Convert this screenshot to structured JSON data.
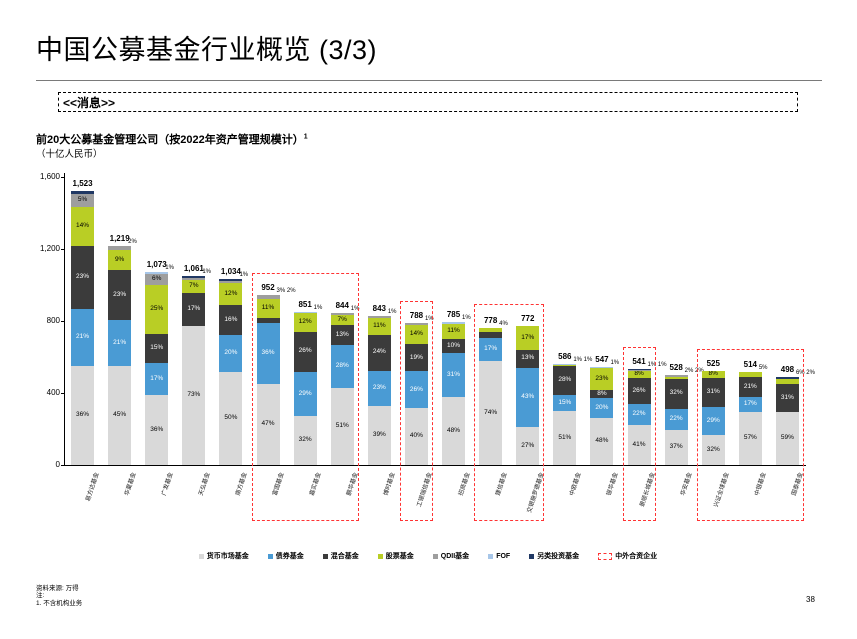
{
  "slide": {
    "title": "中国公募基金行业概览 (3/3)",
    "message_box": "<<消息>>",
    "page_number": "38",
    "footer": {
      "source": "资料来源: 万得",
      "note_label": "注:",
      "note1": "1.    不含机构业务"
    }
  },
  "chart_heading": {
    "title": "前20大公募基金管理公司（按2022年资产管理规模计）",
    "title_superscript": "1",
    "subtitle": "（十亿人民币）"
  },
  "chart_data": {
    "type": "bar",
    "stacked": true,
    "unit": "十亿人民币",
    "ylim": [
      0,
      1600
    ],
    "yticks": [
      {
        "v": 0,
        "label": "0"
      },
      {
        "v": 400,
        "label": "400"
      },
      {
        "v": 800,
        "label": "800"
      },
      {
        "v": 1200,
        "label": "1,200"
      },
      {
        "v": 1600,
        "label": "1,600"
      }
    ],
    "series": [
      {
        "name": "货币市场基金",
        "color": "#d9d9d9",
        "text": "#000000"
      },
      {
        "name": "债券基金",
        "color": "#4a9bd4",
        "text": "#ffffff"
      },
      {
        "name": "混合基金",
        "color": "#3b3b3b",
        "text": "#ffffff"
      },
      {
        "name": "股票基金",
        "color": "#b9ce25",
        "text": "#000000"
      },
      {
        "name": "QDII基金",
        "color": "#9e9e9e",
        "text": "#000000"
      },
      {
        "name": "FOF",
        "color": "#a7c6e8",
        "text": "#000000"
      },
      {
        "name": "另类投资基金",
        "color": "#203864",
        "text": "#ffffff"
      }
    ],
    "legend_jv": {
      "label": "中外合资企业",
      "color": "#ff3333"
    },
    "bars": [
      {
        "company": "易方达基金",
        "total": 1523,
        "label": "1,523",
        "segs": [
          {
            "s": 0,
            "p": 36,
            "l": "36%"
          },
          {
            "s": 1,
            "p": 21,
            "l": "21%"
          },
          {
            "s": 2,
            "p": 23,
            "l": "23%"
          },
          {
            "s": 3,
            "p": 14,
            "l": "14%"
          },
          {
            "s": 4,
            "p": 5,
            "l": "5%"
          },
          {
            "s": 6,
            "p": 1
          }
        ]
      },
      {
        "company": "华夏基金",
        "total": 1219,
        "label": "1,219",
        "segs": [
          {
            "s": 0,
            "p": 45,
            "l": "45%"
          },
          {
            "s": 1,
            "p": 21,
            "l": "21%"
          },
          {
            "s": 2,
            "p": 23,
            "l": "23%"
          },
          {
            "s": 3,
            "p": 9,
            "l": "9%"
          },
          {
            "s": 4,
            "p": 2,
            "l": "2%",
            "o": true
          }
        ]
      },
      {
        "company": "广发基金",
        "total": 1073,
        "label": "1,073",
        "segs": [
          {
            "s": 0,
            "p": 36,
            "l": "36%"
          },
          {
            "s": 1,
            "p": 17,
            "l": "17%"
          },
          {
            "s": 2,
            "p": 15,
            "l": "15%"
          },
          {
            "s": 3,
            "p": 25,
            "l": "25%"
          },
          {
            "s": 4,
            "p": 6,
            "l": "6%"
          },
          {
            "s": 5,
            "p": 1,
            "l": "1%",
            "o": true
          }
        ]
      },
      {
        "company": "天弘基金",
        "total": 1061,
        "label": "1,061",
        "segs": [
          {
            "s": 0,
            "p": 73,
            "l": "73%"
          },
          {
            "s": 2,
            "p": 17,
            "l": "17%"
          },
          {
            "s": 3,
            "p": 7,
            "l": "7%"
          },
          {
            "s": 4,
            "p": 1,
            "l": "1%",
            "o": true
          },
          {
            "s": 6,
            "p": 1
          }
        ]
      },
      {
        "company": "南方基金",
        "total": 1034,
        "label": "1,034",
        "segs": [
          {
            "s": 0,
            "p": 50,
            "l": "50%"
          },
          {
            "s": 1,
            "p": 20,
            "l": "20%"
          },
          {
            "s": 2,
            "p": 16,
            "l": "16%"
          },
          {
            "s": 3,
            "p": 12,
            "l": "12%"
          },
          {
            "s": 4,
            "p": 1,
            "l": "1%",
            "o": true
          },
          {
            "s": 6,
            "p": 1
          }
        ]
      },
      {
        "company": "富国基金",
        "total": 952,
        "label": "952",
        "segs": [
          {
            "s": 0,
            "p": 47,
            "l": "47%"
          },
          {
            "s": 1,
            "p": 36,
            "l": "36%"
          },
          {
            "s": 2,
            "p": 3,
            "l": "3%",
            "o": true
          },
          {
            "s": 3,
            "p": 11,
            "l": "11%"
          },
          {
            "s": 4,
            "p": 2,
            "l": "2%",
            "o": true
          }
        ]
      },
      {
        "company": "嘉实基金",
        "total": 851,
        "label": "851",
        "segs": [
          {
            "s": 0,
            "p": 32,
            "l": "32%"
          },
          {
            "s": 1,
            "p": 29,
            "l": "29%"
          },
          {
            "s": 2,
            "p": 26,
            "l": "26%"
          },
          {
            "s": 3,
            "p": 12,
            "l": "12%"
          },
          {
            "s": 5,
            "p": 1,
            "l": "1%",
            "o": true
          }
        ]
      },
      {
        "company": "鹏华基金",
        "total": 844,
        "label": "844",
        "segs": [
          {
            "s": 0,
            "p": 51,
            "l": "51%"
          },
          {
            "s": 1,
            "p": 28,
            "l": "28%"
          },
          {
            "s": 2,
            "p": 13,
            "l": "13%"
          },
          {
            "s": 3,
            "p": 7,
            "l": "7%"
          },
          {
            "s": 4,
            "p": 1,
            "l": "1%",
            "o": true
          }
        ]
      },
      {
        "company": "博时基金",
        "total": 843,
        "label": "843",
        "segs": [
          {
            "s": 0,
            "p": 39,
            "l": "39%"
          },
          {
            "s": 1,
            "p": 23,
            "l": "23%"
          },
          {
            "s": 2,
            "p": 24,
            "l": "24%"
          },
          {
            "s": 3,
            "p": 11,
            "l": "11%"
          },
          {
            "s": 4,
            "p": 1,
            "l": "1%",
            "o": true
          }
        ]
      },
      {
        "company": "工银瑞信基金",
        "total": 788,
        "label": "788",
        "segs": [
          {
            "s": 0,
            "p": 40,
            "l": "40%"
          },
          {
            "s": 1,
            "p": 26,
            "l": "26%"
          },
          {
            "s": 2,
            "p": 19,
            "l": "19%"
          },
          {
            "s": 3,
            "p": 14,
            "l": "14%"
          },
          {
            "s": 4,
            "p": 1,
            "l": "1%",
            "o": true
          }
        ]
      },
      {
        "company": "招商基金",
        "total": 785,
        "label": "785",
        "segs": [
          {
            "s": 0,
            "p": 48,
            "l": "48%"
          },
          {
            "s": 1,
            "p": 31,
            "l": "31%"
          },
          {
            "s": 2,
            "p": 10,
            "l": "10%"
          },
          {
            "s": 3,
            "p": 11,
            "l": "11%"
          },
          {
            "s": 5,
            "p": 1,
            "l": "1%",
            "o": true
          }
        ]
      },
      {
        "company": "建信基金",
        "total": 778,
        "label": "778",
        "segs": [
          {
            "s": 0,
            "p": 74,
            "l": "74%"
          },
          {
            "s": 1,
            "p": 17,
            "l": "17%"
          },
          {
            "s": 2,
            "p": 4,
            "l": "4%",
            "o": true
          },
          {
            "s": 3,
            "p": 3
          }
        ]
      },
      {
        "company": "交银施罗德基金",
        "total": 772,
        "label": "772",
        "segs": [
          {
            "s": 0,
            "p": 27,
            "l": "27%"
          },
          {
            "s": 1,
            "p": 43,
            "l": "43%"
          },
          {
            "s": 2,
            "p": 13,
            "l": "13%"
          },
          {
            "s": 3,
            "p": 17,
            "l": "17%"
          }
        ]
      },
      {
        "company": "中欧基金",
        "total": 586,
        "label": "586",
        "segs": [
          {
            "s": 0,
            "p": 51,
            "l": "51%"
          },
          {
            "s": 1,
            "p": 15,
            "l": "15%"
          },
          {
            "s": 2,
            "p": 28,
            "l": "28%"
          },
          {
            "s": 3,
            "p": 1,
            "l": "1%",
            "o": true
          },
          {
            "s": 5,
            "p": 1,
            "l": "1%",
            "o": true
          }
        ]
      },
      {
        "company": "银华基金",
        "total": 547,
        "label": "547",
        "segs": [
          {
            "s": 0,
            "p": 48,
            "l": "48%"
          },
          {
            "s": 1,
            "p": 20,
            "l": "20%"
          },
          {
            "s": 2,
            "p": 8,
            "l": "8%"
          },
          {
            "s": 3,
            "p": 23,
            "l": "23%"
          },
          {
            "s": 5,
            "p": 1,
            "l": "1%",
            "o": true
          }
        ]
      },
      {
        "company": "景顺长城基金",
        "total": 541,
        "label": "541",
        "segs": [
          {
            "s": 0,
            "p": 41,
            "l": "41%"
          },
          {
            "s": 1,
            "p": 22,
            "l": "22%"
          },
          {
            "s": 2,
            "p": 26,
            "l": "26%"
          },
          {
            "s": 3,
            "p": 8,
            "l": "8%"
          },
          {
            "s": 4,
            "p": 1,
            "l": "1%",
            "o": true
          },
          {
            "s": 6,
            "p": 1,
            "l": "1%",
            "o": true
          }
        ]
      },
      {
        "company": "华安基金",
        "total": 528,
        "label": "528",
        "segs": [
          {
            "s": 0,
            "p": 37,
            "l": "37%"
          },
          {
            "s": 1,
            "p": 22,
            "l": "22%"
          },
          {
            "s": 2,
            "p": 32,
            "l": "32%"
          },
          {
            "s": 3,
            "p": 2,
            "l": "2%",
            "o": true
          },
          {
            "s": 4,
            "p": 2,
            "l": "2%",
            "o": true
          }
        ]
      },
      {
        "company": "兴证全球基金",
        "total": 525,
        "label": "525",
        "segs": [
          {
            "s": 0,
            "p": 32,
            "l": "32%"
          },
          {
            "s": 1,
            "p": 29,
            "l": "29%"
          },
          {
            "s": 2,
            "p": 31,
            "l": "31%"
          },
          {
            "s": 3,
            "p": 8,
            "l": "8%"
          }
        ]
      },
      {
        "company": "中银基金",
        "total": 514,
        "label": "514",
        "segs": [
          {
            "s": 0,
            "p": 57,
            "l": "57%"
          },
          {
            "s": 1,
            "p": 17,
            "l": "17%"
          },
          {
            "s": 2,
            "p": 21,
            "l": "21%"
          },
          {
            "s": 3,
            "p": 5,
            "l": "5%",
            "o": true
          }
        ]
      },
      {
        "company": "国泰基金",
        "total": 498,
        "label": "498",
        "segs": [
          {
            "s": 0,
            "p": 59,
            "l": "59%"
          },
          {
            "s": 2,
            "p": 31,
            "l": "31%"
          },
          {
            "s": 3,
            "p": 6,
            "l": "6%",
            "o": true
          },
          {
            "s": 6,
            "p": 2,
            "l": "2%",
            "o": true
          }
        ]
      }
    ],
    "jv_boxes": [
      {
        "from": 5,
        "to": 7
      },
      {
        "from": 9,
        "to": 9
      },
      {
        "from": 11,
        "to": 12
      },
      {
        "from": 15,
        "to": 15
      },
      {
        "from": 17,
        "to": 19
      }
    ]
  }
}
